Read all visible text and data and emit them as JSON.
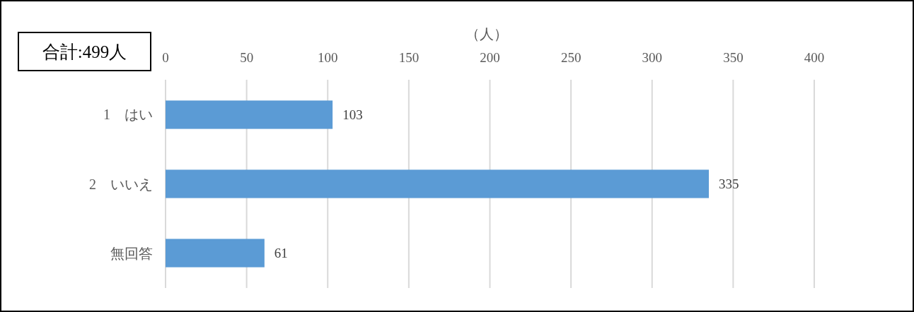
{
  "chart_data": {
    "type": "bar",
    "orientation": "horizontal",
    "categories": [
      "1　はい",
      "2　いいえ",
      "無回答"
    ],
    "values": [
      103,
      335,
      61
    ],
    "color": "#5b9bd5",
    "xlim": [
      0,
      400
    ],
    "xticks": [
      0,
      50,
      100,
      150,
      200,
      250,
      300,
      350,
      400
    ],
    "xlabel": "（人）",
    "grid": "x",
    "data_labels": true,
    "annotations": [
      "合計:499人"
    ]
  }
}
